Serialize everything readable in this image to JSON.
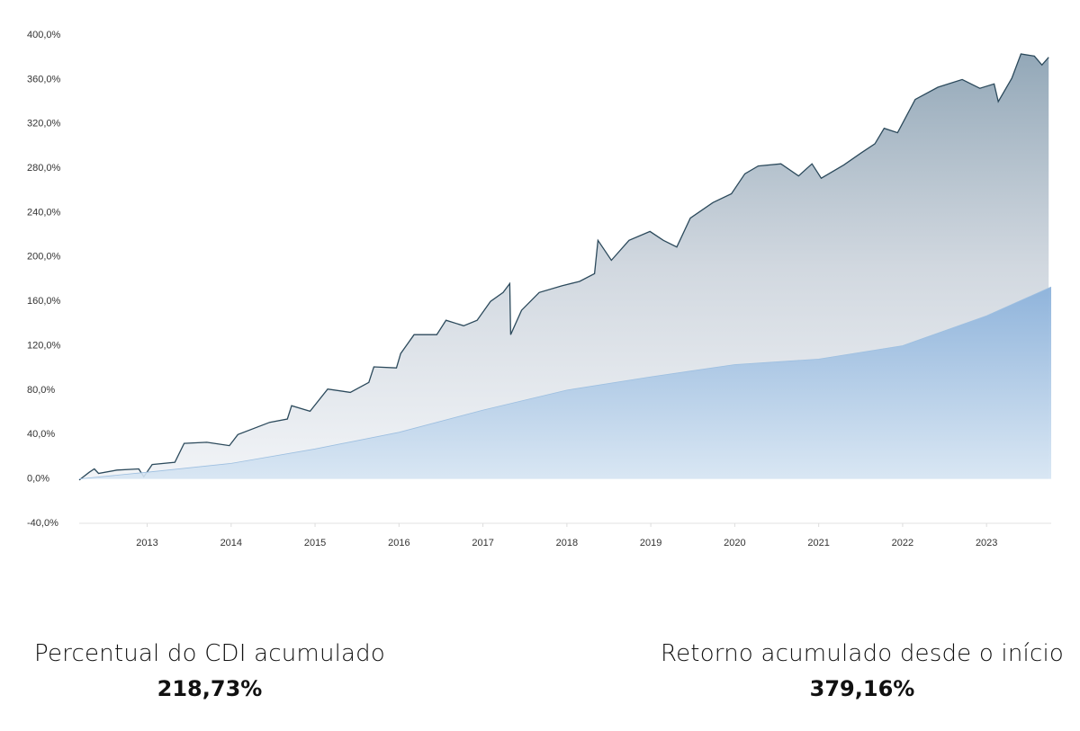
{
  "chart_data": {
    "type": "area",
    "xlim": [
      2012.19,
      2023.77
    ],
    "xticks": [
      2013,
      2014,
      2015,
      2016,
      2017,
      2018,
      2019,
      2020,
      2021,
      2022,
      2023
    ],
    "ylim": [
      -40,
      400
    ],
    "yticks": [
      {
        "value": -40,
        "label": "-40,0%"
      },
      {
        "value": 0,
        "label": "0,0%"
      },
      {
        "value": 40,
        "label": "40,0%"
      },
      {
        "value": 80,
        "label": "80,0%"
      },
      {
        "value": 120,
        "label": "120,0%"
      },
      {
        "value": 160,
        "label": "160,0%"
      },
      {
        "value": 200,
        "label": "200,0%"
      },
      {
        "value": 240,
        "label": "240,0%"
      },
      {
        "value": 280,
        "label": "280,0%"
      },
      {
        "value": 320,
        "label": "320,0%"
      },
      {
        "value": 360,
        "label": "360,0%"
      },
      {
        "value": 400,
        "label": "400,0%"
      }
    ],
    "grid": false,
    "series": [
      {
        "color": "#2c4a5c",
        "x": [
          2012.19,
          2012.31,
          2012.37,
          2012.42,
          2012.64,
          2012.9,
          2012.96,
          2013.06,
          2013.33,
          2013.44,
          2013.71,
          2013.98,
          2014.08,
          2014.46,
          2014.67,
          2014.72,
          2014.94,
          2015.15,
          2015.42,
          2015.64,
          2015.7,
          2015.97,
          2016.02,
          2016.18,
          2016.45,
          2016.56,
          2016.77,
          2016.93,
          2017.09,
          2017.24,
          2017.32,
          2017.33,
          2017.46,
          2017.67,
          2017.94,
          2018.15,
          2018.33,
          2018.37,
          2018.53,
          2018.74,
          2018.99,
          2019.15,
          2019.31,
          2019.47,
          2019.74,
          2019.96,
          2020.12,
          2020.28,
          2020.55,
          2020.76,
          2020.92,
          2021.03,
          2021.3,
          2021.51,
          2021.67,
          2021.78,
          2021.94,
          2022.15,
          2022.42,
          2022.71,
          2022.92,
          2023.09,
          2023.14,
          2023.3,
          2023.41,
          2023.57,
          2023.66,
          2023.74
        ],
        "values": [
          -1,
          6,
          9,
          5,
          8,
          9,
          2,
          13,
          15,
          32,
          33,
          30,
          40,
          51,
          54,
          66,
          61,
          81,
          78,
          87,
          101,
          100,
          113,
          130,
          130,
          143,
          138,
          143,
          160,
          168,
          176,
          130,
          152,
          168,
          174,
          178,
          185,
          215,
          197,
          215,
          223,
          215,
          209,
          235,
          249,
          257,
          275,
          282,
          284,
          273,
          284,
          271,
          283,
          294,
          302,
          316,
          312,
          342,
          353,
          360,
          352,
          356,
          340,
          361,
          383,
          381,
          373,
          380
        ]
      },
      {
        "color": "#9dbfe0",
        "x": [
          2012.19,
          2013,
          2014,
          2015,
          2016,
          2017,
          2018,
          2019,
          2020,
          2021,
          2022,
          2023,
          2023.77
        ],
        "values": [
          0,
          6,
          14,
          27,
          42,
          62,
          80,
          92,
          103,
          108,
          120,
          147,
          173
        ]
      }
    ]
  },
  "stats": [
    {
      "label": "Percentual do CDI acumulado",
      "value": "218,73%"
    },
    {
      "label": "Retorno acumulado desde o início",
      "value": "379,16%"
    }
  ]
}
